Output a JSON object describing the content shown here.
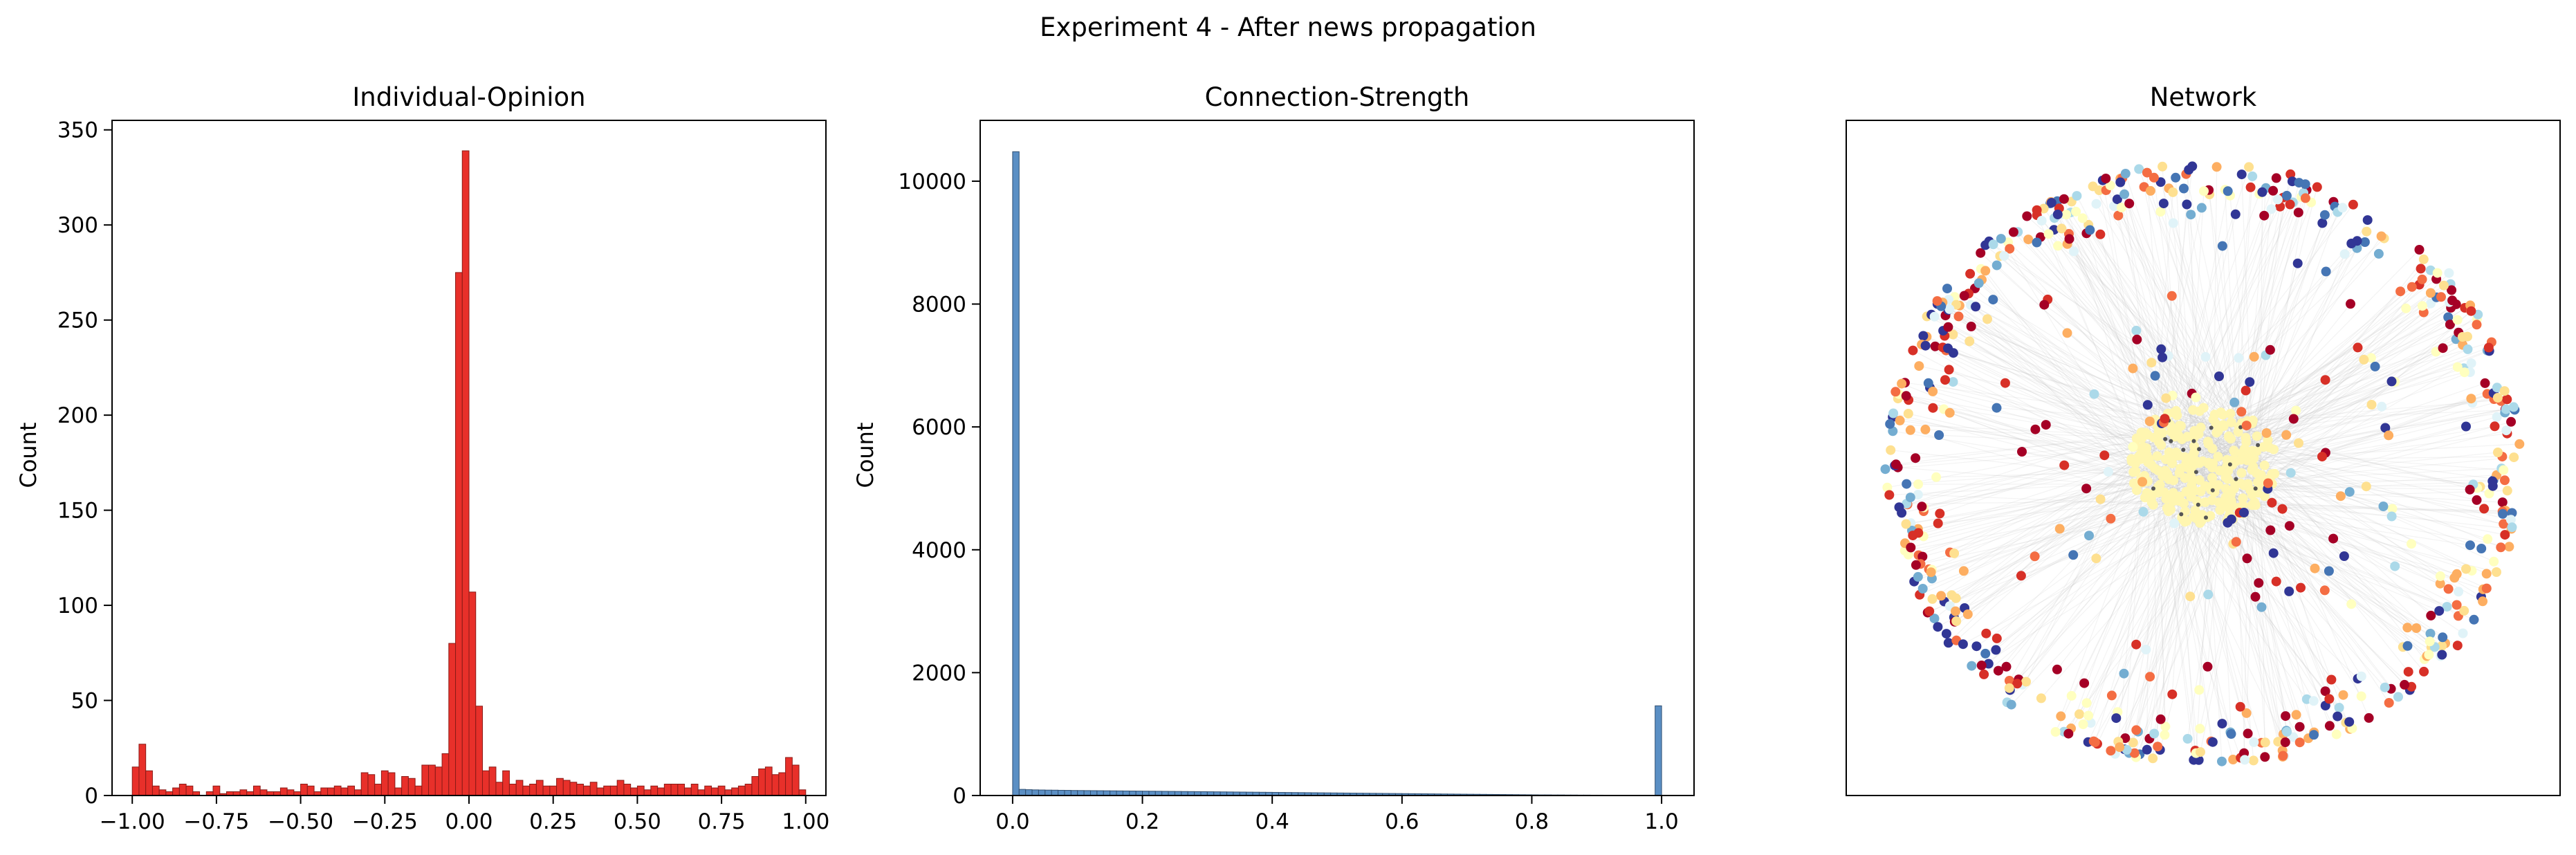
{
  "figure": {
    "suptitle": "Experiment 4 - After news propagation"
  },
  "chart_data": [
    {
      "type": "bar",
      "kind": "histogram",
      "title": "Individual-Opinion",
      "xlabel": "",
      "ylabel": "Count",
      "xlim": [
        -1.06,
        1.06
      ],
      "ylim": [
        0,
        355
      ],
      "bar_color": "#e8302a",
      "edge_color": "#8a1a16",
      "grid": false,
      "xticks": [
        -1.0,
        -0.75,
        -0.5,
        -0.25,
        0.0,
        0.25,
        0.5,
        0.75,
        1.0
      ],
      "xtick_labels": [
        "−1.00",
        "−0.75",
        "−0.50",
        "−0.25",
        "0.00",
        "0.25",
        "0.50",
        "0.75",
        "1.00"
      ],
      "yticks": [
        0,
        50,
        100,
        150,
        200,
        250,
        300,
        350
      ],
      "ytick_labels": [
        "0",
        "50",
        "100",
        "150",
        "200",
        "250",
        "300",
        "350"
      ],
      "bin_start": -1.0,
      "bin_width": 0.02,
      "counts": [
        15,
        27,
        13,
        5,
        3,
        2,
        4,
        6,
        5,
        2,
        0,
        2,
        5,
        1,
        2,
        2,
        3,
        2,
        5,
        3,
        2,
        2,
        4,
        3,
        2,
        6,
        5,
        2,
        4,
        4,
        5,
        4,
        5,
        3,
        12,
        11,
        6,
        13,
        12,
        4,
        10,
        9,
        5,
        16,
        16,
        15,
        22,
        80,
        275,
        339,
        107,
        47,
        13,
        15,
        7,
        13,
        6,
        8,
        5,
        6,
        8,
        5,
        5,
        9,
        8,
        7,
        6,
        5,
        7,
        4,
        5,
        5,
        8,
        6,
        4,
        5,
        3,
        5,
        4,
        6,
        6,
        6,
        4,
        6,
        3,
        5,
        4,
        5,
        3,
        4,
        5,
        6,
        10,
        14,
        15,
        11,
        12,
        20,
        16,
        3
      ]
    },
    {
      "type": "bar",
      "kind": "histogram",
      "title": "Connection-Strength",
      "xlabel": "",
      "ylabel": "Count",
      "xlim": [
        -0.05,
        1.05
      ],
      "ylim": [
        0,
        10990
      ],
      "bar_color": "#5b8fc4",
      "edge_color": "#2f4f72",
      "grid": false,
      "xticks": [
        0.0,
        0.2,
        0.4,
        0.6,
        0.8,
        1.0
      ],
      "xtick_labels": [
        "0.0",
        "0.2",
        "0.4",
        "0.6",
        "0.8",
        "1.0"
      ],
      "yticks": [
        0,
        2000,
        4000,
        6000,
        8000,
        10000
      ],
      "ytick_labels": [
        "0",
        "2000",
        "4000",
        "6000",
        "8000",
        "10000"
      ],
      "bin_start": 0.0,
      "bin_width": 0.01,
      "counts": [
        10480,
        100,
        95,
        92,
        90,
        88,
        87,
        85,
        84,
        82,
        81,
        80,
        79,
        78,
        77,
        76,
        75,
        74,
        73,
        72,
        71,
        70,
        69,
        68,
        67,
        66,
        65,
        64,
        63,
        62,
        61,
        60,
        59,
        58,
        57,
        56,
        55,
        54,
        53,
        52,
        51,
        50,
        49,
        48,
        47,
        46,
        45,
        44,
        43,
        42,
        41,
        40,
        39,
        38,
        37,
        36,
        35,
        34,
        33,
        32,
        31,
        30,
        29,
        28,
        27,
        26,
        25,
        24,
        23,
        22,
        21,
        20,
        19,
        18,
        17,
        16,
        15,
        14,
        13,
        12,
        11,
        10,
        10,
        9,
        9,
        8,
        8,
        7,
        7,
        6,
        6,
        5,
        5,
        5,
        4,
        4,
        4,
        3,
        3,
        1460
      ]
    },
    {
      "type": "scatter",
      "kind": "network",
      "title": "Network",
      "axes_visible": false,
      "node_palette": [
        "#a50026",
        "#d73027",
        "#f46d43",
        "#fdae61",
        "#fee090",
        "#ffffbf",
        "#e0f3f8",
        "#abd9e9",
        "#74add1",
        "#4575b4",
        "#313695"
      ],
      "core_color": "#fff6b0",
      "edge_color": "#c8c8c8"
    }
  ]
}
